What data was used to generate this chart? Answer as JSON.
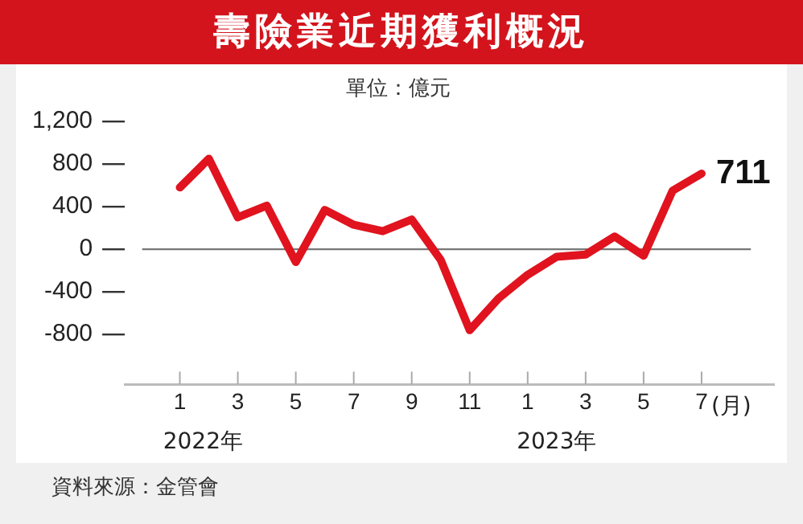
{
  "chart_data": {
    "type": "line",
    "title": "壽險業近期獲利概況",
    "subtitle": "單位：億元",
    "categories": [
      "1",
      null,
      "3",
      null,
      "5",
      null,
      "7",
      null,
      "9",
      null,
      "11",
      null,
      "1",
      null,
      "3",
      null,
      "5",
      null,
      "7"
    ],
    "series": [
      {
        "color": "#e0131e",
        "values": [
          580,
          850,
          300,
          410,
          -120,
          370,
          230,
          170,
          280,
          -100,
          -760,
          -460,
          -240,
          -70,
          -50,
          120,
          -60,
          550,
          711
        ],
        "value_labels": [
          null,
          null,
          null,
          null,
          null,
          null,
          null,
          null,
          null,
          null,
          null,
          null,
          null,
          null,
          null,
          null,
          null,
          null,
          "711"
        ]
      }
    ],
    "ylim": [
      -1270,
      1200
    ],
    "yticks": [
      -800,
      -400,
      0,
      400,
      800,
      {
        "value": 1200,
        "label": "1,200"
      }
    ],
    "ref_lines": [
      {
        "axis": "y",
        "value": 0,
        "color": "#777777"
      }
    ],
    "annotations": [
      "(月)",
      "2022年",
      "2023年",
      "資料來源：金管會"
    ],
    "grid": false,
    "legend": false,
    "marker": "none",
    "line_style": "solid"
  }
}
